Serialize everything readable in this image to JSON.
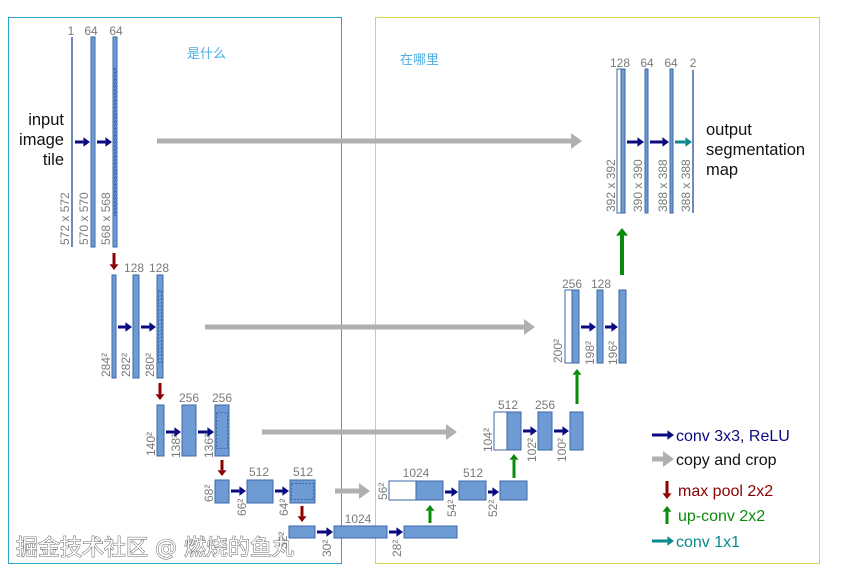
{
  "regions": {
    "left_label": "是什么",
    "right_label": "在哪里",
    "left_border_color": "#2aa8c8",
    "right_border_color": "#d6d64a"
  },
  "input_label": [
    "input",
    "image",
    "tile"
  ],
  "output_label": [
    "output",
    "segmentation",
    "map"
  ],
  "encoder": [
    {
      "channels": [
        "1",
        "64",
        "64"
      ],
      "sizes": [
        "572 x 572",
        "570 x 570",
        "568 x 568"
      ]
    },
    {
      "channels": [
        "128",
        "128"
      ],
      "sizes": [
        "284²",
        "282²",
        "280²"
      ]
    },
    {
      "channels": [
        "256",
        "256"
      ],
      "sizes": [
        "140²",
        "138²",
        "136²"
      ]
    },
    {
      "channels": [
        "512",
        "512"
      ],
      "sizes": [
        "68²",
        "66²",
        "64²"
      ]
    },
    {
      "channels": [
        "1024"
      ],
      "sizes": [
        "32²",
        "30²",
        "28²"
      ]
    }
  ],
  "decoder": [
    {
      "channels": [
        "1024",
        "512"
      ],
      "sizes": [
        "56²",
        "54²",
        "52²"
      ]
    },
    {
      "channels": [
        "512",
        "256"
      ],
      "sizes": [
        "104²",
        "102²",
        "100²"
      ]
    },
    {
      "channels": [
        "256",
        "128"
      ],
      "sizes": [
        "200²",
        "198²",
        "196²"
      ]
    },
    {
      "channels": [
        "128",
        "64",
        "64",
        "2"
      ],
      "sizes": [
        "392 x 392",
        "390 x 390",
        "388 x 388",
        "388 x 388"
      ]
    }
  ],
  "legend": [
    {
      "label": "conv 3x3, ReLU",
      "icon": "arrow-right-icon",
      "color": "#0a0a80"
    },
    {
      "label": "copy and crop",
      "icon": "arrow-right-icon",
      "color": "#b0b0b0"
    },
    {
      "label": "max pool 2x2",
      "icon": "arrow-down-icon",
      "color": "#8b0000"
    },
    {
      "label": "up-conv 2x2",
      "icon": "arrow-up-icon",
      "color": "#0a8a0a"
    },
    {
      "label": "conv 1x1",
      "icon": "arrow-right-icon",
      "color": "#0a8a8a"
    }
  ],
  "colors": {
    "feature_map": "#6f9bd5",
    "feature_map_border": "#3b67a8",
    "copy_map": "#ffffff"
  },
  "watermark": "掘金技术社区 @ 燃烧的鱼丸"
}
